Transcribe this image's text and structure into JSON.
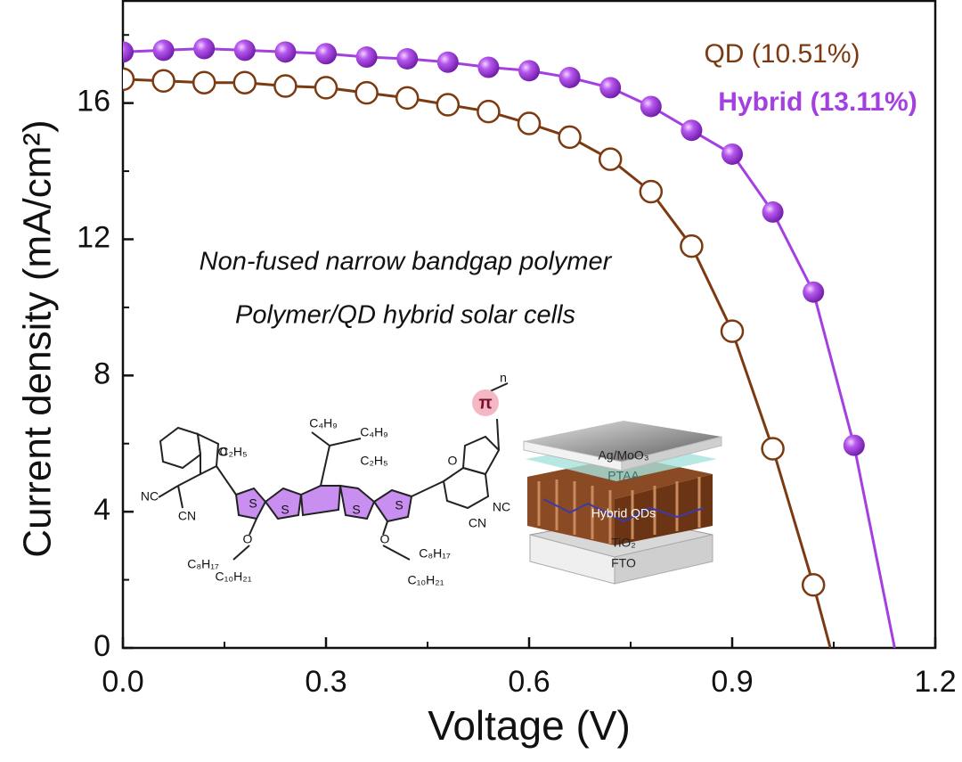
{
  "chart_data": {
    "type": "line",
    "xlabel": "Voltage (V)",
    "ylabel": "Current density (mA/cm²)",
    "xlim": [
      0,
      1.2
    ],
    "ylim": [
      0,
      19
    ],
    "xticks": [
      {
        "value": 0,
        "label": "0.0"
      },
      0.3,
      0.6,
      0.9,
      1.2
    ],
    "yticks": [
      0,
      4,
      8,
      12,
      16
    ],
    "xminorticks": [
      0.15,
      0.45,
      0.75,
      1.05
    ],
    "yminorticks": [
      2,
      6,
      10,
      14,
      18
    ],
    "legend": "upper right",
    "series": [
      {
        "name": "QD (10.51%)",
        "color": "#7b3a12",
        "x": [
          0,
          0.06,
          0.12,
          0.18,
          0.24,
          0.3,
          0.36,
          0.42,
          0.48,
          0.54,
          0.6,
          0.66,
          0.72,
          0.78,
          0.84,
          0.9,
          0.96,
          1.02,
          1.045
        ],
        "values": [
          16.7,
          16.65,
          16.6,
          16.6,
          16.5,
          16.45,
          16.3,
          16.15,
          15.95,
          15.75,
          15.4,
          15.0,
          14.35,
          13.4,
          11.8,
          9.3,
          5.85,
          1.85,
          0
        ]
      },
      {
        "name": "Hybrid (13.11%)",
        "color": "#a43fe0",
        "x": [
          0,
          0.06,
          0.12,
          0.18,
          0.24,
          0.3,
          0.36,
          0.42,
          0.48,
          0.54,
          0.6,
          0.66,
          0.72,
          0.78,
          0.84,
          0.9,
          0.96,
          1.02,
          1.08,
          1.14
        ],
        "values": [
          17.5,
          17.55,
          17.6,
          17.55,
          17.5,
          17.45,
          17.35,
          17.3,
          17.2,
          17.05,
          16.95,
          16.75,
          16.45,
          15.9,
          15.2,
          14.5,
          12.8,
          10.45,
          5.95,
          0
        ]
      }
    ],
    "annotations": [
      "Non-fused narrow bandgap polymer",
      "Polymer/QD hybrid solar cells"
    ],
    "molecule_labels": [
      "C₄H₉",
      "C₄H₉",
      "C₂H₅",
      "C₂H₅",
      "O",
      "O",
      "NC",
      "CN",
      "CN",
      "NC",
      "S",
      "S",
      "S",
      "S",
      "O",
      "O",
      "C₈H₁₇",
      "C₈H₁₇",
      "C₁₀H₂₁",
      "C₁₀H₂₁",
      "π",
      "n"
    ],
    "device_labels": [
      "Ag/MoO₃",
      "PTAA",
      "Hybrid QDs",
      "TiO₂",
      "FTO"
    ]
  }
}
